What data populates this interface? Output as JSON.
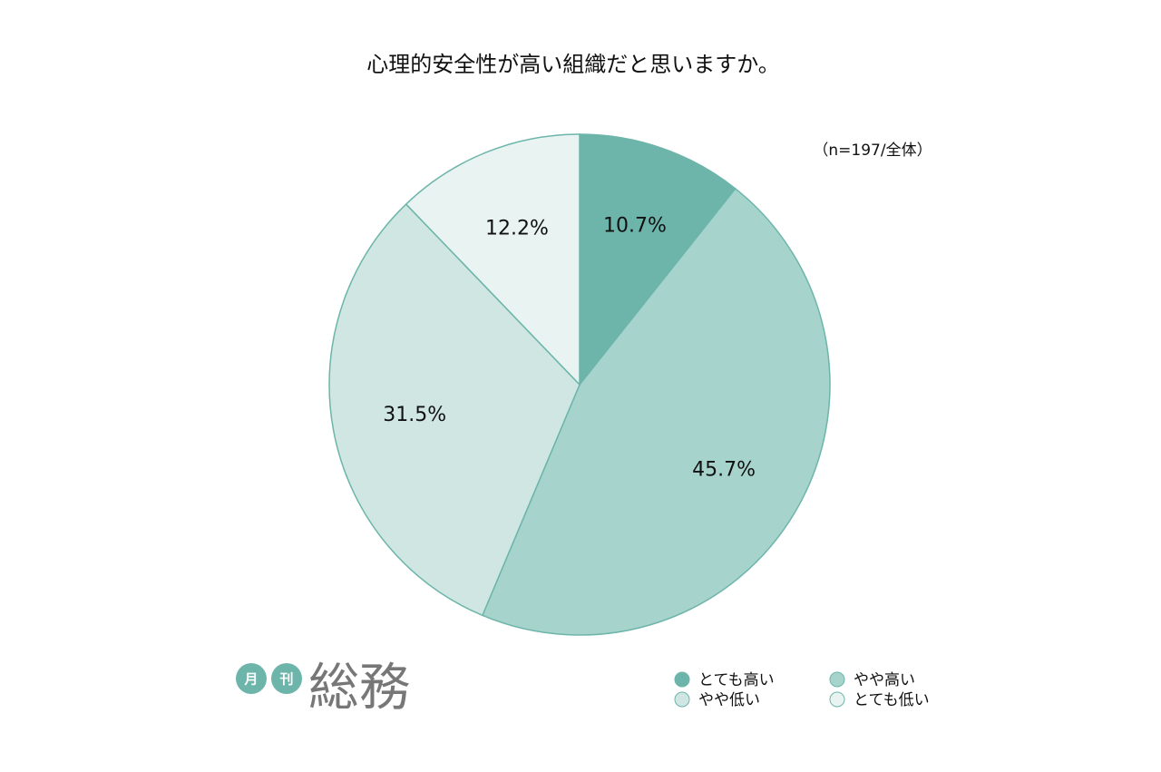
{
  "chart_data": {
    "type": "pie",
    "title": "心理的安全性が高い組織だと思いますか。",
    "subtitle": "（n=197/全体）",
    "categories": [
      "とても高い",
      "やや高い",
      "やや低い",
      "とても低い"
    ],
    "values": [
      10.7,
      45.7,
      31.5,
      12.2
    ],
    "value_labels": [
      "10.7%",
      "45.7%",
      "31.5%",
      "12.2%"
    ],
    "colors": [
      "#6db5aa",
      "#a6d3cc",
      "#cfe6e3",
      "#e8f3f2"
    ],
    "legend": "bottom-right"
  },
  "logo": {
    "badges": [
      "月",
      "刊"
    ],
    "name": "総務"
  }
}
